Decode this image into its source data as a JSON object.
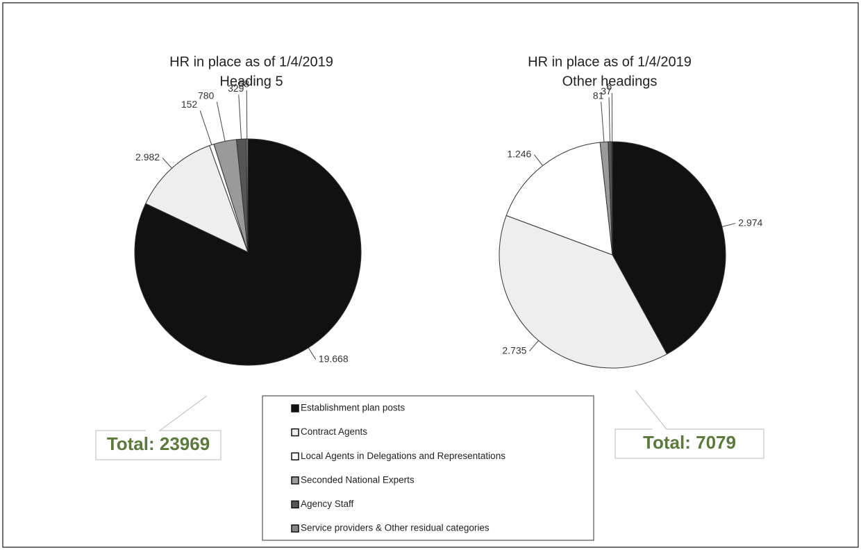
{
  "chart_data": [
    {
      "type": "pie",
      "title": "HR in place as of 1/4/2019",
      "subtitle": "Heading 5",
      "categories": [
        "Establishment plan posts",
        "Contract Agents",
        "Local Agents in Delegations and Representations",
        "Seconded National Experts",
        "Agency Staff",
        "Service providers & Other residual categories"
      ],
      "values": [
        19668,
        2982,
        152,
        780,
        329,
        58
      ],
      "value_labels": [
        "19.668",
        "2.982",
        "152",
        "780",
        "329",
        "58"
      ],
      "colors": [
        "#111111",
        "#eeeeee",
        "#ffffff",
        "#9a9a9a",
        "#555555",
        "#888888"
      ],
      "annotation": "Total: 23969"
    },
    {
      "type": "pie",
      "title": "HR in place as of 1/4/2019",
      "subtitle": "Other headings",
      "categories": [
        "Establishment plan posts",
        "Contract Agents",
        "Local Agents in Delegations and Representations",
        "Seconded National Experts",
        "Agency Staff",
        "Service providers & Other residual categories"
      ],
      "values": [
        2974,
        2735,
        1246,
        81,
        37,
        6
      ],
      "value_labels": [
        "2.974",
        "2.735",
        "1.246",
        "81",
        "37",
        "6"
      ],
      "colors": [
        "#111111",
        "#eeeeee",
        "#ffffff",
        "#9a9a9a",
        "#555555",
        "#888888"
      ],
      "annotation": "Total: 7079"
    }
  ]
}
